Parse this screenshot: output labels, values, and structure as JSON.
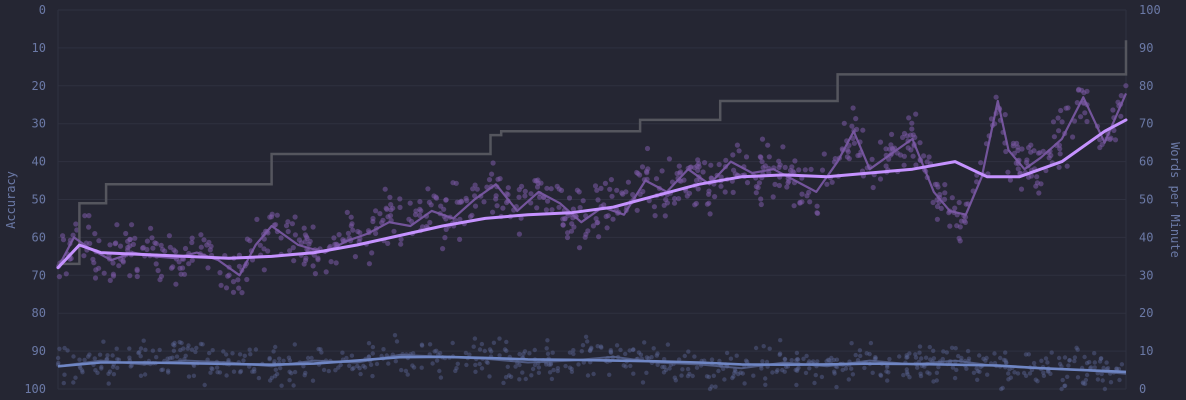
{
  "chart_data": {
    "type": "line",
    "title": "",
    "colors": {
      "background": "#252633",
      "grid": "#2f3140",
      "tick_text": "#6b79a6",
      "wpm_raw": "#7c5aa6",
      "wpm_avg": "#c592ff",
      "acc_raw": "#5a6794",
      "acc_avg": "#6f86c4",
      "personal_best": "#55565e"
    },
    "axes": {
      "left": {
        "label": "Accuracy",
        "min": 0,
        "max": 100,
        "reversed": true,
        "ticks": [
          0,
          10,
          20,
          30,
          40,
          50,
          60,
          70,
          80,
          90,
          100
        ]
      },
      "right": {
        "label": "Words per Minute",
        "min": 0,
        "max": 100,
        "ticks": [
          0,
          10,
          20,
          30,
          40,
          50,
          60,
          70,
          80,
          90,
          100
        ]
      },
      "x": {
        "label": "",
        "min": 0,
        "max": 1000,
        "ticks_visible": false
      },
      "grid": true
    },
    "series": [
      {
        "key": "personal_best",
        "axis": "right",
        "style": "step",
        "x": [
          0,
          20,
          45,
          200,
          405,
          415,
          545,
          620,
          730,
          1000
        ],
        "values": [
          33,
          49,
          54,
          62,
          67,
          68,
          71,
          76,
          83,
          92
        ]
      },
      {
        "key": "wpm_avg",
        "axis": "right",
        "style": "line",
        "x": [
          0,
          20,
          40,
          80,
          120,
          160,
          200,
          240,
          280,
          320,
          360,
          400,
          440,
          480,
          520,
          560,
          600,
          640,
          680,
          720,
          760,
          800,
          840,
          870,
          900,
          940,
          980,
          1000
        ],
        "values": [
          32,
          38,
          36,
          35.5,
          35,
          34.5,
          35,
          36,
          38,
          40.5,
          43,
          45,
          46,
          46.5,
          48,
          51,
          54,
          56,
          56.5,
          56,
          57,
          58,
          60,
          56,
          56,
          60,
          68,
          71
        ]
      },
      {
        "key": "wpm_raw",
        "axis": "right",
        "style": "line",
        "x": [
          0,
          15,
          30,
          50,
          70,
          90,
          110,
          130,
          150,
          170,
          185,
          200,
          225,
          250,
          270,
          290,
          310,
          330,
          350,
          370,
          390,
          410,
          430,
          450,
          470,
          490,
          510,
          530,
          550,
          570,
          590,
          610,
          630,
          650,
          670,
          690,
          710,
          730,
          745,
          760,
          780,
          800,
          820,
          835,
          850,
          865,
          880,
          890,
          905,
          920,
          940,
          960,
          980,
          1000
        ],
        "values": [
          32,
          40,
          37,
          34,
          36,
          35,
          34.5,
          36,
          34,
          30,
          38,
          43,
          38,
          36,
          39,
          41,
          44,
          43,
          47,
          45,
          50,
          54,
          47,
          52,
          49,
          44,
          48,
          46,
          55,
          52,
          58,
          54,
          60,
          57,
          58,
          55,
          52,
          60,
          68,
          58,
          62,
          66,
          52,
          47,
          46,
          56,
          76,
          63,
          58,
          61,
          66,
          77,
          65,
          78
        ]
      },
      {
        "key": "acc_raw",
        "axis": "left",
        "style": "line",
        "x": [
          0,
          40,
          80,
          120,
          160,
          200,
          240,
          280,
          320,
          360,
          400,
          440,
          480,
          520,
          560,
          600,
          640,
          680,
          720,
          760,
          800,
          840,
          880,
          920,
          960,
          1000
        ],
        "values": [
          94,
          92.5,
          93.5,
          92.5,
          93,
          94,
          92.5,
          93,
          91,
          91.5,
          92,
          93,
          92.5,
          91.5,
          93,
          93.5,
          94.5,
          93,
          94,
          92.5,
          93.5,
          92.5,
          94,
          94.5,
          95,
          96
        ]
      },
      {
        "key": "acc_avg",
        "axis": "left",
        "style": "line",
        "x": [
          0,
          40,
          80,
          120,
          160,
          200,
          240,
          280,
          320,
          360,
          400,
          440,
          480,
          520,
          560,
          600,
          640,
          680,
          720,
          760,
          800,
          840,
          880,
          920,
          960,
          1000
        ],
        "values": [
          94,
          93,
          93,
          93.2,
          93.4,
          93.6,
          93.3,
          92.5,
          91.6,
          91.5,
          91.8,
          92.2,
          92.3,
          92.5,
          92.7,
          93,
          93.5,
          93.6,
          93.5,
          93.3,
          93.4,
          93.6,
          93.8,
          94.5,
          95,
          95.5
        ]
      }
    ]
  }
}
